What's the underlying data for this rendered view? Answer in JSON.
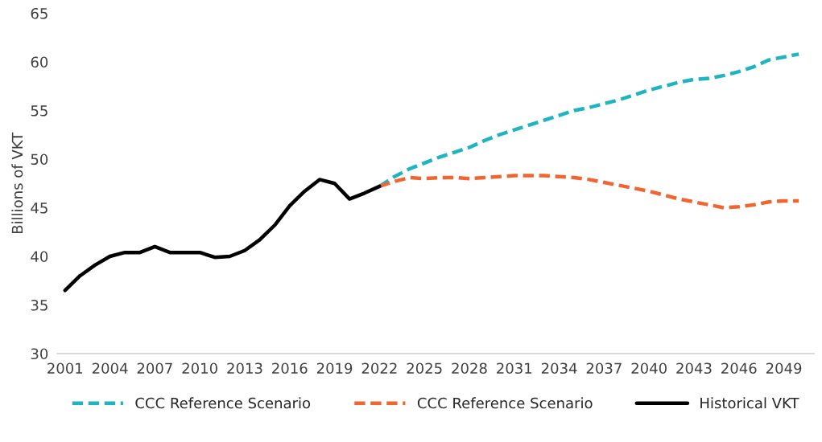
{
  "chart_data": {
    "type": "line",
    "ylabel": "Billions of VKT",
    "ylim": [
      30,
      65
    ],
    "yticks": [
      30,
      35,
      40,
      45,
      50,
      55,
      60,
      65
    ],
    "xlim": [
      2000.5,
      2051
    ],
    "xticks": [
      2001,
      2004,
      2007,
      2010,
      2013,
      2016,
      2019,
      2022,
      2025,
      2028,
      2031,
      2034,
      2037,
      2040,
      2043,
      2046,
      2049
    ],
    "grid": false,
    "legend": "bottom",
    "series": [
      {
        "name": "CCC Reference Scenario",
        "color": "#1fb5c0",
        "line_style": "dashed",
        "x": [
          2022,
          2023,
          2024,
          2025,
          2026,
          2027,
          2028,
          2029,
          2030,
          2031,
          2032,
          2033,
          2034,
          2035,
          2036,
          2037,
          2038,
          2039,
          2040,
          2041,
          2042,
          2043,
          2044,
          2045,
          2046,
          2047,
          2048,
          2049,
          2050
        ],
        "values": [
          47.2,
          48.2,
          49.0,
          49.6,
          50.2,
          50.7,
          51.2,
          51.9,
          52.5,
          53.0,
          53.5,
          54.0,
          54.5,
          55.0,
          55.3,
          55.7,
          56.1,
          56.6,
          57.1,
          57.5,
          57.9,
          58.2,
          58.3,
          58.6,
          59.0,
          59.5,
          60.2,
          60.5,
          60.8
        ]
      },
      {
        "name": "CCC Reference Scenario",
        "color": "#f26530",
        "line_style": "dashed",
        "x": [
          2022,
          2023,
          2024,
          2025,
          2026,
          2027,
          2028,
          2029,
          2030,
          2031,
          2032,
          2033,
          2034,
          2035,
          2036,
          2037,
          2038,
          2039,
          2040,
          2041,
          2042,
          2043,
          2044,
          2045,
          2046,
          2047,
          2048,
          2049,
          2050
        ],
        "values": [
          47.2,
          47.7,
          48.1,
          48.0,
          48.1,
          48.1,
          48.0,
          48.1,
          48.2,
          48.3,
          48.3,
          48.3,
          48.2,
          48.1,
          47.9,
          47.6,
          47.3,
          47.0,
          46.7,
          46.3,
          45.9,
          45.6,
          45.3,
          45.0,
          45.1,
          45.3,
          45.6,
          45.7,
          45.7
        ]
      },
      {
        "name": "Historical VKT",
        "color": "#000000",
        "line_style": "solid",
        "x": [
          2001,
          2002,
          2003,
          2004,
          2005,
          2006,
          2007,
          2008,
          2009,
          2010,
          2011,
          2012,
          2013,
          2014,
          2015,
          2016,
          2017,
          2018,
          2019,
          2020,
          2021,
          2022
        ],
        "values": [
          36.5,
          38.0,
          39.1,
          40.0,
          40.4,
          40.4,
          41.0,
          40.4,
          40.4,
          40.4,
          39.9,
          40.0,
          40.6,
          41.7,
          43.2,
          45.2,
          46.7,
          47.9,
          47.5,
          45.9,
          46.5,
          47.2
        ]
      }
    ]
  }
}
